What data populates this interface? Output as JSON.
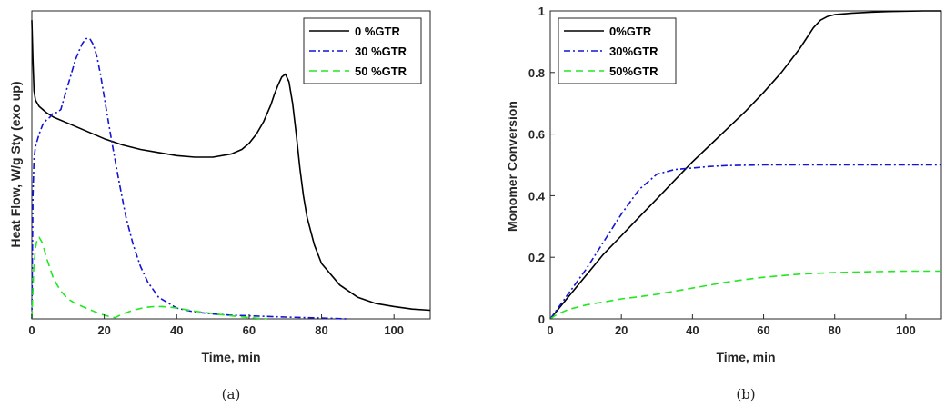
{
  "chart_data": [
    {
      "type": "line",
      "caption": "(a)",
      "title": "",
      "xlabel": "Time, min",
      "ylabel": "Heat Flow, W/g Sty (exo up)",
      "xlim": [
        0,
        110
      ],
      "ylim": [
        0,
        1
      ],
      "xticks": [
        0,
        20,
        40,
        60,
        80,
        100
      ],
      "yticks_labeled": false,
      "grid": false,
      "legend_position": "top-right",
      "series": [
        {
          "name": "0 %GTR",
          "color": "#000000",
          "dash": "solid",
          "x": [
            0,
            0.3,
            0.6,
            1,
            2,
            4,
            6,
            10,
            15,
            20,
            25,
            30,
            35,
            40,
            45,
            50,
            55,
            58,
            60,
            62,
            64,
            66,
            67,
            68,
            69,
            70,
            71,
            72,
            73,
            74,
            75,
            76,
            78,
            80,
            85,
            90,
            95,
            100,
            105,
            110
          ],
          "y": [
            0.97,
            0.84,
            0.74,
            0.71,
            0.69,
            0.67,
            0.655,
            0.635,
            0.61,
            0.585,
            0.565,
            0.55,
            0.54,
            0.53,
            0.525,
            0.525,
            0.535,
            0.55,
            0.57,
            0.6,
            0.64,
            0.695,
            0.73,
            0.76,
            0.785,
            0.795,
            0.77,
            0.7,
            0.6,
            0.49,
            0.4,
            0.33,
            0.24,
            0.18,
            0.11,
            0.07,
            0.05,
            0.04,
            0.032,
            0.028
          ]
        },
        {
          "name": "30 %GTR",
          "color": "#1414d2",
          "dash": "dashdot",
          "x": [
            0,
            0.3,
            0.6,
            1,
            2,
            3,
            4,
            5,
            6,
            7,
            8,
            9,
            10,
            11,
            12,
            13,
            14,
            15,
            16,
            17,
            18,
            19,
            20,
            22,
            24,
            26,
            28,
            30,
            32,
            35,
            40,
            45,
            50,
            55,
            60,
            65,
            70,
            80,
            87
          ],
          "y": [
            0,
            0.4,
            0.52,
            0.56,
            0.6,
            0.63,
            0.645,
            0.655,
            0.67,
            0.67,
            0.68,
            0.72,
            0.76,
            0.8,
            0.84,
            0.87,
            0.895,
            0.91,
            0.91,
            0.89,
            0.85,
            0.79,
            0.72,
            0.58,
            0.45,
            0.33,
            0.24,
            0.17,
            0.12,
            0.07,
            0.035,
            0.022,
            0.016,
            0.012,
            0.01,
            0.008,
            0.006,
            0.003,
            0
          ]
        },
        {
          "name": "50 %GTR",
          "color": "#22e822",
          "dash": "dashed",
          "x": [
            0,
            0.5,
            1,
            1.5,
            2,
            3,
            4,
            5,
            6,
            8,
            10,
            12,
            14,
            16,
            18,
            20,
            22,
            23,
            24,
            26,
            28,
            30,
            32,
            34,
            36,
            38,
            40,
            45,
            50,
            55,
            60,
            65
          ],
          "y": [
            0,
            0.16,
            0.23,
            0.26,
            0.265,
            0.245,
            0.2,
            0.165,
            0.13,
            0.09,
            0.065,
            0.05,
            0.04,
            0.03,
            0.02,
            0.012,
            0.006,
            0.004,
            0.01,
            0.02,
            0.028,
            0.034,
            0.038,
            0.04,
            0.04,
            0.038,
            0.035,
            0.025,
            0.017,
            0.01,
            0.004,
            0
          ]
        }
      ]
    },
    {
      "type": "line",
      "caption": "(b)",
      "title": "",
      "xlabel": "Time, min",
      "ylabel": "Monomer Conversion",
      "xlim": [
        0,
        110
      ],
      "ylim": [
        0,
        1
      ],
      "xticks": [
        0,
        20,
        40,
        60,
        80,
        100
      ],
      "yticks": [
        0,
        0.2,
        0.4,
        0.6,
        0.8,
        1
      ],
      "grid": false,
      "legend_position": "top-left",
      "series": [
        {
          "name": "0%GTR",
          "color": "#000000",
          "dash": "solid",
          "x": [
            0,
            5,
            10,
            15,
            20,
            25,
            30,
            35,
            40,
            45,
            50,
            55,
            60,
            65,
            70,
            72,
            74,
            76,
            78,
            80,
            85,
            90,
            95,
            100,
            105,
            110
          ],
          "y": [
            0,
            0.07,
            0.14,
            0.21,
            0.27,
            0.33,
            0.39,
            0.45,
            0.51,
            0.565,
            0.62,
            0.675,
            0.735,
            0.8,
            0.875,
            0.91,
            0.945,
            0.97,
            0.982,
            0.988,
            0.993,
            0.996,
            0.998,
            0.999,
            1.0,
            1.0
          ]
        },
        {
          "name": "30%GTR",
          "color": "#1414d2",
          "dash": "dashdot",
          "x": [
            0,
            5,
            10,
            15,
            20,
            25,
            30,
            35,
            40,
            45,
            50,
            60,
            70,
            80,
            90,
            100,
            110
          ],
          "y": [
            0,
            0.08,
            0.16,
            0.25,
            0.34,
            0.42,
            0.47,
            0.485,
            0.49,
            0.495,
            0.498,
            0.5,
            0.5,
            0.5,
            0.5,
            0.5,
            0.5
          ]
        },
        {
          "name": "50%GTR",
          "color": "#22e822",
          "dash": "dashed",
          "x": [
            0,
            2,
            5,
            10,
            15,
            20,
            25,
            30,
            35,
            40,
            45,
            50,
            55,
            60,
            65,
            70,
            75,
            80,
            90,
            100,
            110
          ],
          "y": [
            0,
            0.015,
            0.03,
            0.045,
            0.055,
            0.065,
            0.072,
            0.08,
            0.09,
            0.1,
            0.11,
            0.12,
            0.128,
            0.135,
            0.14,
            0.145,
            0.148,
            0.15,
            0.153,
            0.155,
            0.155
          ]
        }
      ]
    }
  ]
}
